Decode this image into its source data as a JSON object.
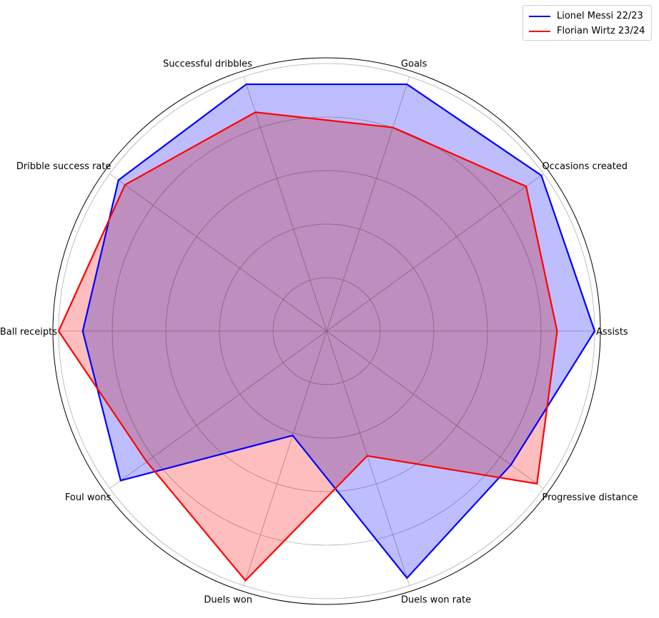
{
  "chart_data": {
    "type": "radar",
    "categories": [
      "Assists",
      "Occasions created",
      "Goals",
      "Successful dribbles",
      "Dribble success rate",
      "Ball receipts",
      "Foul wons",
      "Duels won",
      "Duels won rate",
      "Progressive distance"
    ],
    "rlim": [
      0,
      1
    ],
    "grid": true,
    "legend": "top-right",
    "series": [
      {
        "name": "Lionel Messi 22/23",
        "color": "#0000ff",
        "fill": "#bbbbff",
        "values": [
          1.0,
          0.99,
          0.97,
          0.97,
          0.96,
          0.91,
          0.95,
          0.41,
          0.97,
          0.85
        ]
      },
      {
        "name": "Florian Wirtz 23/24",
        "color": "#ff0000",
        "fill": "#ffbbbb",
        "values": [
          0.86,
          0.92,
          0.8,
          0.86,
          0.93,
          1.0,
          0.83,
          0.98,
          0.49,
          0.97
        ]
      }
    ]
  }
}
